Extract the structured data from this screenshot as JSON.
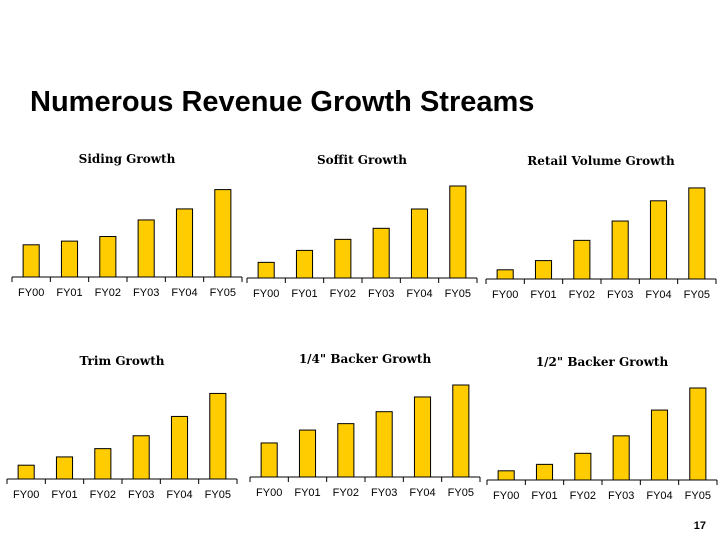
{
  "page": {
    "title": "Numerous Revenue Growth Streams",
    "page_number": "17"
  },
  "chart_data": [
    {
      "type": "bar",
      "title": "Siding Growth",
      "categories": [
        "FY00",
        "FY01",
        "FY02",
        "FY03",
        "FY04",
        "FY05"
      ],
      "values": [
        35,
        39,
        44,
        62,
        74,
        95
      ],
      "ylim": [
        0,
        100
      ],
      "grid": false,
      "legend": "none",
      "bar_color": "#FFCC00"
    },
    {
      "type": "bar",
      "title": "Soffit Growth",
      "categories": [
        "FY00",
        "FY01",
        "FY02",
        "FY03",
        "FY04",
        "FY05"
      ],
      "values": [
        17,
        30,
        42,
        54,
        75,
        100
      ],
      "ylim": [
        0,
        100
      ],
      "grid": false,
      "legend": "none",
      "bar_color": "#FFCC00"
    },
    {
      "type": "bar",
      "title": "Retail Volume Growth",
      "categories": [
        "FY00",
        "FY01",
        "FY02",
        "FY03",
        "FY04",
        "FY05"
      ],
      "values": [
        10,
        20,
        42,
        63,
        85,
        99
      ],
      "ylim": [
        0,
        100
      ],
      "grid": false,
      "legend": "none",
      "bar_color": "#FFCC00"
    },
    {
      "type": "bar",
      "title": "Trim Growth",
      "categories": [
        "FY00",
        "FY01",
        "FY02",
        "FY03",
        "FY04",
        "FY05"
      ],
      "values": [
        15,
        24,
        33,
        47,
        68,
        93
      ],
      "ylim": [
        0,
        100
      ],
      "grid": false,
      "legend": "none",
      "bar_color": "#FFCC00"
    },
    {
      "type": "bar",
      "title": "1/4\" Backer Growth",
      "categories": [
        "FY00",
        "FY01",
        "FY02",
        "FY03",
        "FY04",
        "FY05"
      ],
      "values": [
        37,
        51,
        58,
        71,
        87,
        100
      ],
      "ylim": [
        0,
        100
      ],
      "grid": false,
      "legend": "none",
      "bar_color": "#FFCC00"
    },
    {
      "type": "bar",
      "title": "1/2\" Backer Growth",
      "categories": [
        "FY00",
        "FY01",
        "FY02",
        "FY03",
        "FY04",
        "FY05"
      ],
      "values": [
        10,
        17,
        29,
        48,
        76,
        100
      ],
      "ylim": [
        0,
        100
      ],
      "grid": false,
      "legend": "none",
      "bar_color": "#FFCC00"
    }
  ]
}
